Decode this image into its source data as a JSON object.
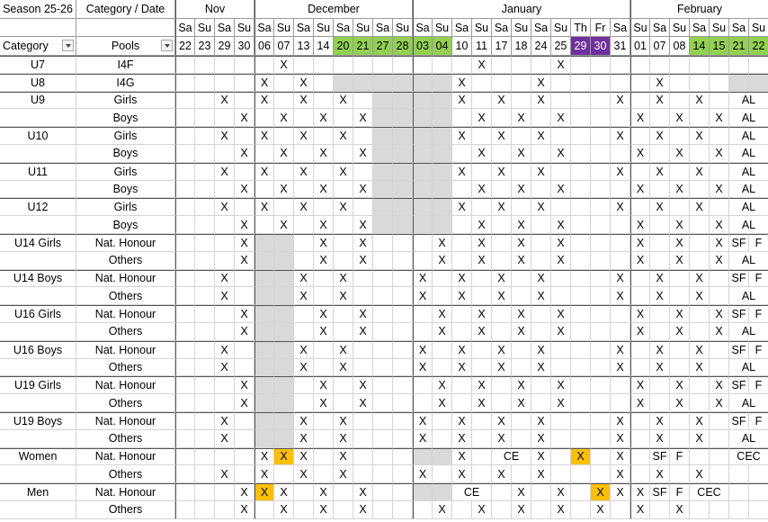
{
  "header": {
    "season": "Season 25-26",
    "category_date": "Category / Date",
    "category": "Category",
    "pools": "Pools"
  },
  "months": [
    {
      "name": "Nov",
      "columns": [
        {
          "day": "Sa",
          "date": "22"
        },
        {
          "day": "Su",
          "date": "23"
        },
        {
          "day": "Sa",
          "date": "29"
        },
        {
          "day": "Su",
          "date": "30"
        }
      ]
    },
    {
      "name": "December",
      "columns": [
        {
          "day": "Sa",
          "date": "06"
        },
        {
          "day": "Su",
          "date": "07"
        },
        {
          "day": "Sa",
          "date": "13"
        },
        {
          "day": "Su",
          "date": "14"
        },
        {
          "day": "Sa",
          "date": "20",
          "fill": "#92d050"
        },
        {
          "day": "Su",
          "date": "21",
          "fill": "#92d050"
        },
        {
          "day": "Sa",
          "date": "27",
          "fill": "#92d050"
        },
        {
          "day": "Su",
          "date": "28",
          "fill": "#92d050"
        }
      ]
    },
    {
      "name": "January",
      "columns": [
        {
          "day": "Sa",
          "date": "03",
          "fill": "#92d050"
        },
        {
          "day": "Su",
          "date": "04",
          "fill": "#92d050"
        },
        {
          "day": "Sa",
          "date": "10"
        },
        {
          "day": "Su",
          "date": "11"
        },
        {
          "day": "Sa",
          "date": "17"
        },
        {
          "day": "Su",
          "date": "18"
        },
        {
          "day": "Sa",
          "date": "24"
        },
        {
          "day": "Su",
          "date": "25"
        },
        {
          "day": "Th",
          "date": "29",
          "fill": "#7030a0",
          "color": "#ffffff"
        },
        {
          "day": "Fr",
          "date": "30",
          "fill": "#7030a0",
          "color": "#ffffff"
        },
        {
          "day": "Sa",
          "date": "31"
        }
      ]
    },
    {
      "name": "February",
      "columns": [
        {
          "day": "Su",
          "date": "01"
        },
        {
          "day": "Sa",
          "date": "07"
        },
        {
          "day": "Su",
          "date": "08"
        },
        {
          "day": "Sa",
          "date": "14",
          "fill": "#92d050"
        },
        {
          "day": "Su",
          "date": "15",
          "fill": "#92d050"
        },
        {
          "day": "Sa",
          "date": "21",
          "fill": "#92d050"
        },
        {
          "day": "Su",
          "date": "22",
          "fill": "#92d050"
        }
      ]
    }
  ],
  "rows": [
    {
      "category": "U7",
      "pool": "I4F",
      "cells": [
        null,
        null,
        null,
        null,
        null,
        "X",
        null,
        null,
        null,
        null,
        null,
        null,
        null,
        null,
        null,
        "X",
        null,
        null,
        null,
        "X",
        null,
        null,
        null,
        null,
        null,
        null,
        null,
        null,
        null,
        null
      ]
    },
    {
      "category": "U8",
      "pool": "I4G",
      "cells": [
        null,
        null,
        null,
        null,
        "X",
        null,
        "X",
        null,
        {
          "fill": "#d9d9d9"
        },
        {
          "fill": "#d9d9d9"
        },
        {
          "fill": "#d9d9d9"
        },
        {
          "fill": "#d9d9d9"
        },
        {
          "fill": "#d9d9d9"
        },
        {
          "fill": "#d9d9d9"
        },
        "X",
        null,
        null,
        null,
        "X",
        null,
        null,
        null,
        null,
        null,
        "X",
        null,
        null,
        null,
        {
          "fill": "#d9d9d9"
        },
        {
          "fill": "#d9d9d9"
        }
      ]
    },
    {
      "category": "U9",
      "pool": "Girls",
      "cells": [
        null,
        null,
        "X",
        null,
        "X",
        null,
        "X",
        null,
        "X",
        null,
        {
          "fill": "#d9d9d9"
        },
        {
          "fill": "#d9d9d9"
        },
        {
          "fill": "#d9d9d9"
        },
        {
          "fill": "#d9d9d9"
        },
        "X",
        null,
        "X",
        null,
        "X",
        null,
        null,
        null,
        "X",
        null,
        "X",
        null,
        "X",
        null,
        {
          "text": "AL",
          "colspan": 2
        }
      ]
    },
    {
      "pool": "Boys",
      "cells": [
        null,
        null,
        null,
        "X",
        null,
        "X",
        null,
        "X",
        null,
        "X",
        {
          "fill": "#d9d9d9"
        },
        {
          "fill": "#d9d9d9"
        },
        {
          "fill": "#d9d9d9"
        },
        {
          "fill": "#d9d9d9"
        },
        null,
        "X",
        null,
        "X",
        null,
        "X",
        null,
        null,
        null,
        "X",
        null,
        "X",
        null,
        "X",
        {
          "text": "AL",
          "colspan": 2
        }
      ]
    },
    {
      "category": "U10",
      "pool": "Girls",
      "cells": [
        null,
        null,
        "X",
        null,
        "X",
        null,
        "X",
        null,
        "X",
        null,
        {
          "fill": "#d9d9d9"
        },
        {
          "fill": "#d9d9d9"
        },
        {
          "fill": "#d9d9d9"
        },
        {
          "fill": "#d9d9d9"
        },
        "X",
        null,
        "X",
        null,
        "X",
        null,
        null,
        null,
        "X",
        null,
        "X",
        null,
        "X",
        null,
        {
          "text": "AL",
          "colspan": 2
        }
      ]
    },
    {
      "pool": "Boys",
      "cells": [
        null,
        null,
        null,
        "X",
        null,
        "X",
        null,
        "X",
        null,
        "X",
        {
          "fill": "#d9d9d9"
        },
        {
          "fill": "#d9d9d9"
        },
        {
          "fill": "#d9d9d9"
        },
        {
          "fill": "#d9d9d9"
        },
        null,
        "X",
        null,
        "X",
        null,
        "X",
        null,
        null,
        null,
        "X",
        null,
        "X",
        null,
        "X",
        {
          "text": "AL",
          "colspan": 2
        }
      ]
    },
    {
      "category": "U11",
      "pool": "Girls",
      "cells": [
        null,
        null,
        "X",
        null,
        "X",
        null,
        "X",
        null,
        "X",
        null,
        {
          "fill": "#d9d9d9"
        },
        {
          "fill": "#d9d9d9"
        },
        {
          "fill": "#d9d9d9"
        },
        {
          "fill": "#d9d9d9"
        },
        "X",
        null,
        "X",
        null,
        "X",
        null,
        null,
        null,
        "X",
        null,
        "X",
        null,
        "X",
        null,
        {
          "text": "AL",
          "colspan": 2
        }
      ]
    },
    {
      "pool": "Boys",
      "cells": [
        null,
        null,
        null,
        "X",
        null,
        "X",
        null,
        "X",
        null,
        "X",
        {
          "fill": "#d9d9d9"
        },
        {
          "fill": "#d9d9d9"
        },
        {
          "fill": "#d9d9d9"
        },
        {
          "fill": "#d9d9d9"
        },
        null,
        "X",
        null,
        "X",
        null,
        "X",
        null,
        null,
        null,
        "X",
        null,
        "X",
        null,
        "X",
        {
          "text": "AL",
          "colspan": 2
        }
      ]
    },
    {
      "category": "U12",
      "pool": "Girls",
      "cells": [
        null,
        null,
        "X",
        null,
        "X",
        null,
        "X",
        null,
        "X",
        null,
        {
          "fill": "#d9d9d9"
        },
        {
          "fill": "#d9d9d9"
        },
        {
          "fill": "#d9d9d9"
        },
        {
          "fill": "#d9d9d9"
        },
        "X",
        null,
        "X",
        null,
        "X",
        null,
        null,
        null,
        "X",
        null,
        "X",
        null,
        "X",
        null,
        {
          "text": "AL",
          "colspan": 2
        }
      ]
    },
    {
      "pool": "Boys",
      "cells": [
        null,
        null,
        null,
        "X",
        null,
        "X",
        null,
        "X",
        null,
        "X",
        {
          "fill": "#d9d9d9"
        },
        {
          "fill": "#d9d9d9"
        },
        {
          "fill": "#d9d9d9"
        },
        {
          "fill": "#d9d9d9"
        },
        null,
        "X",
        null,
        "X",
        null,
        "X",
        null,
        null,
        null,
        "X",
        null,
        "X",
        null,
        "X",
        {
          "text": "AL",
          "colspan": 2
        }
      ]
    },
    {
      "category": "U14 Girls",
      "pool": "Nat. Honour",
      "cells": [
        null,
        null,
        null,
        "X",
        {
          "fill": "#d9d9d9"
        },
        {
          "fill": "#d9d9d9"
        },
        null,
        "X",
        null,
        "X",
        null,
        null,
        null,
        "X",
        null,
        "X",
        null,
        "X",
        null,
        "X",
        null,
        null,
        null,
        "X",
        null,
        "X",
        null,
        "X",
        "SF",
        "F"
      ]
    },
    {
      "pool": "Others",
      "cells": [
        null,
        null,
        null,
        "X",
        {
          "fill": "#d9d9d9"
        },
        {
          "fill": "#d9d9d9"
        },
        null,
        "X",
        null,
        "X",
        null,
        null,
        null,
        "X",
        null,
        "X",
        null,
        "X",
        null,
        "X",
        null,
        null,
        null,
        "X",
        null,
        "X",
        null,
        "X",
        {
          "text": "AL",
          "colspan": 2
        }
      ]
    },
    {
      "category": "U14 Boys",
      "pool": "Nat. Honour",
      "cells": [
        null,
        null,
        "X",
        null,
        {
          "fill": "#d9d9d9"
        },
        {
          "fill": "#d9d9d9"
        },
        "X",
        null,
        "X",
        null,
        null,
        null,
        "X",
        null,
        "X",
        null,
        "X",
        null,
        "X",
        null,
        null,
        null,
        "X",
        null,
        "X",
        null,
        "X",
        null,
        "SF",
        "F"
      ]
    },
    {
      "pool": "Others",
      "cells": [
        null,
        null,
        "X",
        null,
        {
          "fill": "#d9d9d9"
        },
        {
          "fill": "#d9d9d9"
        },
        "X",
        null,
        "X",
        null,
        null,
        null,
        "X",
        null,
        "X",
        null,
        "X",
        null,
        "X",
        null,
        null,
        null,
        "X",
        null,
        "X",
        null,
        "X",
        null,
        {
          "text": "AL",
          "colspan": 2
        }
      ]
    },
    {
      "category": "U16 Girls",
      "pool": "Nat. Honour",
      "cells": [
        null,
        null,
        null,
        "X",
        {
          "fill": "#d9d9d9"
        },
        {
          "fill": "#d9d9d9"
        },
        null,
        "X",
        null,
        "X",
        null,
        null,
        null,
        "X",
        null,
        "X",
        null,
        "X",
        null,
        "X",
        null,
        null,
        null,
        "X",
        null,
        "X",
        null,
        "X",
        "SF",
        "F"
      ]
    },
    {
      "pool": "Others",
      "cells": [
        null,
        null,
        null,
        "X",
        {
          "fill": "#d9d9d9"
        },
        {
          "fill": "#d9d9d9"
        },
        null,
        "X",
        null,
        "X",
        null,
        null,
        null,
        "X",
        null,
        "X",
        null,
        "X",
        null,
        "X",
        null,
        null,
        null,
        "X",
        null,
        "X",
        null,
        "X",
        {
          "text": "AL",
          "colspan": 2
        }
      ]
    },
    {
      "category": "U16 Boys",
      "pool": "Nat. Honour",
      "cells": [
        null,
        null,
        "X",
        null,
        {
          "fill": "#d9d9d9"
        },
        {
          "fill": "#d9d9d9"
        },
        "X",
        null,
        "X",
        null,
        null,
        null,
        "X",
        null,
        "X",
        null,
        "X",
        null,
        "X",
        null,
        null,
        null,
        "X",
        null,
        "X",
        null,
        "X",
        null,
        "SF",
        "F"
      ]
    },
    {
      "pool": "Others",
      "cells": [
        null,
        null,
        "X",
        null,
        {
          "fill": "#d9d9d9"
        },
        {
          "fill": "#d9d9d9"
        },
        "X",
        null,
        "X",
        null,
        null,
        null,
        "X",
        null,
        "X",
        null,
        "X",
        null,
        "X",
        null,
        null,
        null,
        "X",
        null,
        "X",
        null,
        "X",
        null,
        {
          "text": "AL",
          "colspan": 2
        }
      ]
    },
    {
      "category": "U19 Girls",
      "pool": "Nat. Honour",
      "cells": [
        null,
        null,
        null,
        "X",
        {
          "fill": "#d9d9d9"
        },
        {
          "fill": "#d9d9d9"
        },
        null,
        "X",
        null,
        "X",
        null,
        null,
        null,
        "X",
        null,
        "X",
        null,
        "X",
        null,
        "X",
        null,
        null,
        null,
        "X",
        null,
        "X",
        null,
        "X",
        "SF",
        "F"
      ]
    },
    {
      "pool": "Others",
      "cells": [
        null,
        null,
        null,
        "X",
        {
          "fill": "#d9d9d9"
        },
        {
          "fill": "#d9d9d9"
        },
        null,
        "X",
        null,
        "X",
        null,
        null,
        null,
        "X",
        null,
        "X",
        null,
        "X",
        null,
        "X",
        null,
        null,
        null,
        "X",
        null,
        "X",
        null,
        "X",
        {
          "text": "AL",
          "colspan": 2
        }
      ]
    },
    {
      "category": "U19 Boys",
      "pool": "Nat. Honour",
      "cells": [
        null,
        null,
        "X",
        null,
        {
          "fill": "#d9d9d9"
        },
        {
          "fill": "#d9d9d9"
        },
        "X",
        null,
        "X",
        null,
        null,
        null,
        "X",
        null,
        "X",
        null,
        "X",
        null,
        "X",
        null,
        null,
        null,
        "X",
        null,
        "X",
        null,
        "X",
        null,
        "SF",
        "F"
      ]
    },
    {
      "pool": "Others",
      "cells": [
        null,
        null,
        "X",
        null,
        {
          "fill": "#d9d9d9"
        },
        {
          "fill": "#d9d9d9"
        },
        "X",
        null,
        "X",
        null,
        null,
        null,
        "X",
        null,
        "X",
        null,
        "X",
        null,
        "X",
        null,
        null,
        null,
        "X",
        null,
        "X",
        null,
        "X",
        null,
        {
          "text": "AL",
          "colspan": 2
        }
      ]
    },
    {
      "category": "Women",
      "pool": "Nat. Honour",
      "cells": [
        null,
        null,
        null,
        null,
        "X",
        {
          "text": "X",
          "fill": "#ffc000"
        },
        "X",
        null,
        "X",
        null,
        null,
        null,
        {
          "fill": "#d9d9d9"
        },
        {
          "fill": "#d9d9d9"
        },
        "X",
        null,
        {
          "text": "CE",
          "colspan": 2
        },
        "X",
        null,
        {
          "text": "X",
          "fill": "#ffc000"
        },
        null,
        "X",
        null,
        "SF",
        "F",
        null,
        null,
        {
          "text": "CEC",
          "colspan": 2
        }
      ]
    },
    {
      "pool": "Others",
      "cells": [
        null,
        null,
        "X",
        null,
        "X",
        null,
        "X",
        null,
        "X",
        null,
        null,
        null,
        "X",
        null,
        "X",
        null,
        "X",
        null,
        "X",
        null,
        null,
        null,
        "X",
        null,
        "X",
        null,
        "X",
        null,
        null,
        null
      ]
    },
    {
      "category": "Men",
      "pool": "Nat. Honour",
      "cells": [
        null,
        null,
        null,
        "X",
        {
          "text": "X",
          "fill": "#ffc000"
        },
        "X",
        null,
        "X",
        null,
        "X",
        null,
        null,
        {
          "fill": "#d9d9d9"
        },
        {
          "fill": "#d9d9d9"
        },
        {
          "text": "CE",
          "colspan": 2
        },
        null,
        "X",
        null,
        "X",
        null,
        {
          "text": "X",
          "fill": "#ffc000"
        },
        "X",
        "X",
        "SF",
        "F",
        {
          "text": "CEC",
          "colspan": 2
        },
        null,
        null
      ]
    },
    {
      "pool": "Others",
      "cells": [
        null,
        null,
        null,
        "X",
        null,
        "X",
        null,
        "X",
        null,
        "X",
        null,
        null,
        null,
        "X",
        null,
        "X",
        null,
        "X",
        null,
        "X",
        null,
        "X",
        null,
        "X",
        null,
        "X",
        null,
        null,
        null,
        null
      ]
    }
  ]
}
